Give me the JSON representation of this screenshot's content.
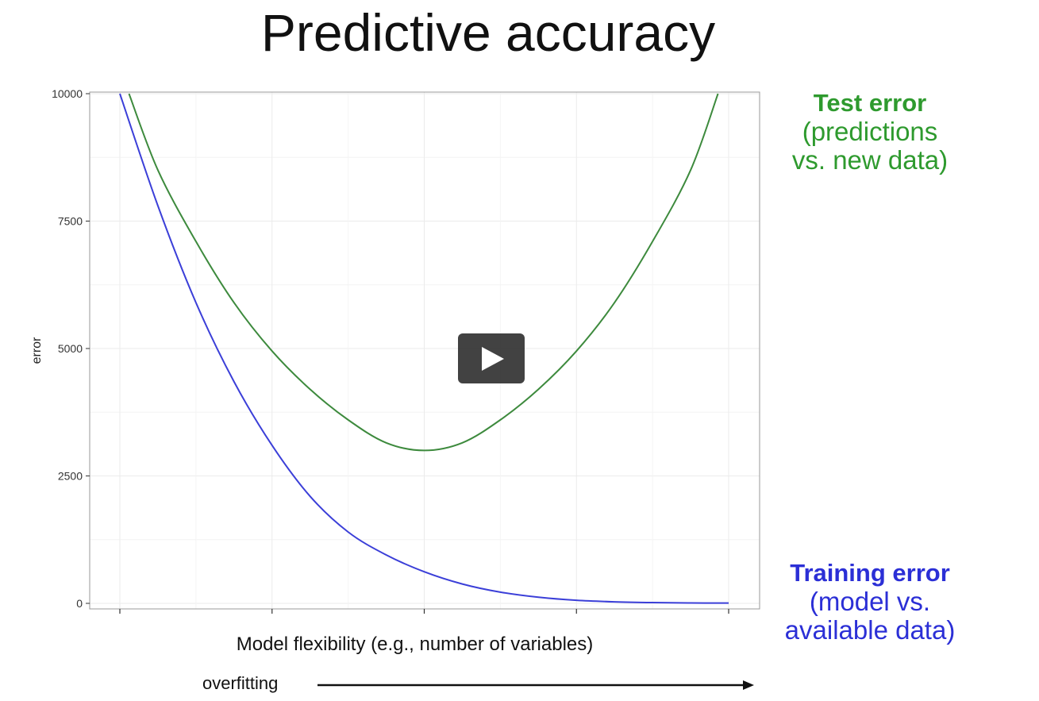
{
  "page": {
    "title": "Predictive accuracy"
  },
  "labels": {
    "test_title": "Test error",
    "test_line1": "(predictions",
    "test_line2": "vs. new data)",
    "train_title": "Training error",
    "train_line1": "(model vs.",
    "train_line2": "available data)",
    "overfitting": "overfitting"
  },
  "player": {
    "play_icon": "play-icon"
  },
  "colors": {
    "test": "#3d8a3d",
    "train": "#3b3fd8",
    "test_label": "#2e9a2e",
    "train_label": "#2b2fd6"
  },
  "chart_data": {
    "type": "line",
    "title": "",
    "xlabel": "Model flexibility (e.g., number of variables)",
    "ylabel": "error",
    "xlim": [
      0,
      4
    ],
    "ylim": [
      0,
      10000
    ],
    "yticks": [
      0,
      2500,
      5000,
      7500,
      10000
    ],
    "ytick_labels": [
      "0",
      "2500",
      "5000",
      "7500",
      "10000"
    ],
    "xticks": [
      0,
      1,
      2,
      3,
      4
    ],
    "grid": true,
    "series": [
      {
        "name": "Test error",
        "color": "#3d8a3d",
        "x": [
          0.06,
          0.25,
          0.5,
          0.75,
          1.0,
          1.25,
          1.5,
          1.75,
          2.0,
          2.25,
          2.5,
          2.75,
          3.0,
          3.25,
          3.5,
          3.75,
          3.93
        ],
        "y": [
          10000,
          8500,
          7100,
          5900,
          4950,
          4200,
          3600,
          3150,
          3000,
          3150,
          3600,
          4200,
          4950,
          5900,
          7100,
          8500,
          10000
        ]
      },
      {
        "name": "Training error",
        "color": "#3b3fd8",
        "x": [
          0.0,
          0.25,
          0.5,
          0.75,
          1.0,
          1.25,
          1.5,
          1.75,
          2.0,
          2.25,
          2.5,
          2.75,
          3.0,
          3.25,
          3.5,
          3.75,
          4.0
        ],
        "y": [
          10000,
          7800,
          5900,
          4350,
          3100,
          2100,
          1400,
          950,
          620,
          380,
          220,
          120,
          60,
          30,
          15,
          8,
          5
        ]
      }
    ]
  }
}
